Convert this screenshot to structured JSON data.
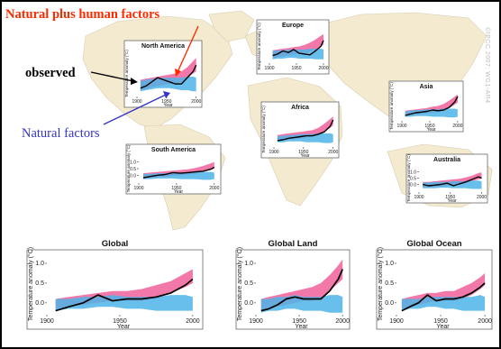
{
  "annotations": {
    "human": "Natural plus human factors",
    "observed": "observed",
    "natural": "Natural factors"
  },
  "credit": "©IPCC 2007: WG1-AR4",
  "colors": {
    "observed": "#000000",
    "natural_band": "#4fb4e8",
    "human_band": "#f0609a",
    "human_annotation": "#ff2a00",
    "natural_annotation": "#3535c8",
    "land": "#f3ead0"
  },
  "chart_data": [
    {
      "type": "line",
      "title": "North America",
      "x": [
        1906,
        1915,
        1925,
        1935,
        1945,
        1955,
        1965,
        1975,
        1985,
        1995,
        2000
      ],
      "xticks": [
        1900,
        1950,
        2000
      ],
      "xlabel": "Year",
      "ylabel": "Temperature anomaly (°C)",
      "yticks": [],
      "ylim": [
        -0.6,
        1.6
      ],
      "series": [
        {
          "name": "observed",
          "values": [
            -0.2,
            -0.1,
            0.1,
            0.3,
            0.2,
            0.1,
            0.0,
            0.0,
            0.3,
            0.6,
            0.9
          ]
        },
        {
          "name": "Natural factors",
          "low": [
            -0.35,
            -0.3,
            -0.25,
            -0.2,
            -0.2,
            -0.2,
            -0.25,
            -0.3,
            -0.3,
            -0.35,
            -0.35
          ],
          "high": [
            0.15,
            0.2,
            0.25,
            0.25,
            0.3,
            0.3,
            0.3,
            0.3,
            0.35,
            0.35,
            0.3
          ]
        },
        {
          "name": "Natural plus human factors",
          "low": [
            -0.3,
            -0.25,
            -0.15,
            -0.1,
            -0.05,
            0.0,
            0.0,
            0.1,
            0.3,
            0.5,
            0.6
          ],
          "high": [
            0.2,
            0.25,
            0.3,
            0.35,
            0.4,
            0.45,
            0.5,
            0.6,
            0.8,
            1.1,
            1.25
          ]
        }
      ]
    },
    {
      "type": "line",
      "title": "Europe",
      "x": [
        1906,
        1915,
        1925,
        1935,
        1945,
        1955,
        1965,
        1975,
        1985,
        1995,
        2000
      ],
      "xticks": [
        1900,
        1950,
        2000
      ],
      "xlabel": "",
      "ylabel": "Temperature anomaly (°C)",
      "yticks": [],
      "ylim": [
        -0.6,
        1.6
      ],
      "series": [
        {
          "name": "observed",
          "values": [
            -0.1,
            0.0,
            0.2,
            0.1,
            0.3,
            0.05,
            0.0,
            -0.05,
            0.2,
            0.5,
            0.9
          ]
        },
        {
          "name": "Natural factors",
          "low": [
            -0.35,
            -0.3,
            -0.3,
            -0.25,
            -0.25,
            -0.3,
            -0.3,
            -0.3,
            -0.35,
            -0.35,
            -0.35
          ],
          "high": [
            0.2,
            0.25,
            0.25,
            0.3,
            0.3,
            0.3,
            0.3,
            0.35,
            0.35,
            0.35,
            0.3
          ]
        },
        {
          "name": "Natural plus human factors",
          "low": [
            -0.3,
            -0.2,
            -0.15,
            -0.1,
            -0.05,
            0.0,
            0.05,
            0.15,
            0.3,
            0.5,
            0.6
          ],
          "high": [
            0.25,
            0.3,
            0.35,
            0.4,
            0.45,
            0.5,
            0.6,
            0.75,
            0.95,
            1.2,
            1.3
          ]
        }
      ]
    },
    {
      "type": "line",
      "title": "Asia",
      "x": [
        1906,
        1915,
        1925,
        1935,
        1945,
        1955,
        1965,
        1975,
        1985,
        1995,
        2000
      ],
      "xticks": [
        1900,
        1950,
        2000
      ],
      "xlabel": "Year",
      "ylabel": "Temperature anomaly (°C)",
      "yticks": [],
      "ylim": [
        -0.6,
        1.6
      ],
      "series": [
        {
          "name": "observed",
          "values": [
            -0.2,
            -0.1,
            0.0,
            0.05,
            0.1,
            0.2,
            0.15,
            0.2,
            0.4,
            0.8,
            1.2
          ]
        },
        {
          "name": "Natural factors",
          "low": [
            -0.3,
            -0.3,
            -0.25,
            -0.25,
            -0.25,
            -0.3,
            -0.3,
            -0.3,
            -0.35,
            -0.35,
            -0.3
          ],
          "high": [
            0.1,
            0.15,
            0.2,
            0.2,
            0.25,
            0.25,
            0.25,
            0.3,
            0.3,
            0.3,
            0.25
          ]
        },
        {
          "name": "Natural plus human factors",
          "low": [
            -0.25,
            -0.2,
            -0.15,
            -0.1,
            -0.05,
            0.0,
            0.05,
            0.15,
            0.35,
            0.6,
            0.75
          ],
          "high": [
            0.15,
            0.2,
            0.25,
            0.3,
            0.35,
            0.45,
            0.5,
            0.65,
            0.9,
            1.2,
            1.35
          ]
        }
      ]
    },
    {
      "type": "line",
      "title": "Africa",
      "x": [
        1906,
        1915,
        1925,
        1935,
        1945,
        1955,
        1965,
        1975,
        1985,
        1995,
        2000
      ],
      "xticks": [
        1900,
        1950,
        2000
      ],
      "xlabel": "Year",
      "ylabel": "Temperature anomaly (°C)",
      "yticks": [],
      "ylim": [
        -0.6,
        1.6
      ],
      "series": [
        {
          "name": "observed",
          "values": [
            -0.2,
            -0.15,
            -0.05,
            0.0,
            0.05,
            0.1,
            0.1,
            0.2,
            0.35,
            0.7,
            1.1
          ]
        },
        {
          "name": "Natural factors",
          "low": [
            -0.3,
            -0.3,
            -0.25,
            -0.25,
            -0.25,
            -0.3,
            -0.3,
            -0.3,
            -0.35,
            -0.35,
            -0.3
          ],
          "high": [
            0.1,
            0.1,
            0.15,
            0.15,
            0.2,
            0.2,
            0.2,
            0.25,
            0.25,
            0.25,
            0.2
          ]
        },
        {
          "name": "Natural plus human factors",
          "low": [
            -0.25,
            -0.2,
            -0.15,
            -0.1,
            -0.05,
            0.0,
            0.05,
            0.15,
            0.35,
            0.6,
            0.75
          ],
          "high": [
            0.15,
            0.2,
            0.25,
            0.3,
            0.35,
            0.4,
            0.45,
            0.6,
            0.85,
            1.15,
            1.3
          ]
        }
      ]
    },
    {
      "type": "line",
      "title": "South America",
      "x": [
        1906,
        1915,
        1925,
        1935,
        1945,
        1955,
        1965,
        1975,
        1985,
        1995,
        2000
      ],
      "xticks": [
        1900,
        1950,
        2000
      ],
      "xlabel": "Year",
      "ylabel": "Temperature anomaly (°C)",
      "yticks": [
        "0.0",
        "0.5",
        "1.0"
      ],
      "ylim": [
        -0.6,
        1.6
      ],
      "series": [
        {
          "name": "observed",
          "values": [
            -0.2,
            -0.1,
            0.0,
            0.05,
            0.2,
            0.15,
            0.2,
            0.25,
            0.3,
            0.45,
            0.6
          ]
        },
        {
          "name": "Natural factors",
          "low": [
            -0.3,
            -0.3,
            -0.25,
            -0.25,
            -0.25,
            -0.3,
            -0.3,
            -0.3,
            -0.35,
            -0.35,
            -0.3
          ],
          "high": [
            0.1,
            0.1,
            0.15,
            0.15,
            0.2,
            0.2,
            0.2,
            0.25,
            0.25,
            0.25,
            0.2
          ]
        },
        {
          "name": "Natural plus human factors",
          "low": [
            -0.25,
            -0.2,
            -0.15,
            -0.1,
            -0.05,
            0.0,
            0.05,
            0.1,
            0.25,
            0.4,
            0.5
          ],
          "high": [
            0.15,
            0.2,
            0.25,
            0.3,
            0.35,
            0.4,
            0.45,
            0.55,
            0.7,
            0.9,
            1.0
          ]
        }
      ]
    },
    {
      "type": "line",
      "title": "Australia",
      "x": [
        1906,
        1915,
        1925,
        1935,
        1945,
        1955,
        1965,
        1975,
        1985,
        1995,
        2000
      ],
      "xticks": [
        1900,
        1950,
        2000
      ],
      "xlabel": "Year",
      "ylabel": "Temperature anomaly (°C)",
      "yticks": [
        "0.0",
        "0.5",
        "1.0"
      ],
      "ylim": [
        -0.6,
        1.6
      ],
      "series": [
        {
          "name": "observed",
          "values": [
            0.0,
            -0.1,
            -0.05,
            0.0,
            0.1,
            -0.1,
            0.05,
            0.2,
            0.4,
            0.6,
            0.5
          ]
        },
        {
          "name": "Natural factors",
          "low": [
            -0.3,
            -0.3,
            -0.3,
            -0.25,
            -0.25,
            -0.3,
            -0.3,
            -0.3,
            -0.35,
            -0.35,
            -0.35
          ],
          "high": [
            0.15,
            0.15,
            0.2,
            0.2,
            0.2,
            0.25,
            0.25,
            0.25,
            0.3,
            0.3,
            0.25
          ]
        },
        {
          "name": "Natural plus human factors",
          "low": [
            -0.25,
            -0.2,
            -0.2,
            -0.15,
            -0.1,
            -0.05,
            0.0,
            0.1,
            0.25,
            0.4,
            0.45
          ],
          "high": [
            0.2,
            0.2,
            0.25,
            0.3,
            0.35,
            0.4,
            0.45,
            0.55,
            0.7,
            0.9,
            0.95
          ]
        }
      ]
    },
    {
      "type": "line",
      "title": "Global",
      "x": [
        1906,
        1915,
        1925,
        1935,
        1945,
        1955,
        1965,
        1975,
        1985,
        1995,
        2000
      ],
      "xticks": [
        1900,
        1950,
        2000
      ],
      "xlabel": "Year",
      "ylabel": "Temperature anomaly (°C)",
      "yticks": [
        "0.0",
        "0.5",
        "1.0"
      ],
      "ylim": [
        -0.3,
        1.25
      ],
      "series": [
        {
          "name": "observed",
          "values": [
            -0.2,
            -0.1,
            0.0,
            0.2,
            0.05,
            0.1,
            0.1,
            0.15,
            0.25,
            0.45,
            0.6
          ]
        },
        {
          "name": "Natural factors",
          "low": [
            -0.2,
            -0.15,
            -0.15,
            -0.1,
            -0.1,
            -0.15,
            -0.15,
            -0.2,
            -0.2,
            -0.2,
            -0.2
          ],
          "high": [
            0.1,
            0.1,
            0.15,
            0.15,
            0.2,
            0.15,
            0.15,
            0.15,
            0.2,
            0.2,
            0.15
          ]
        },
        {
          "name": "Natural plus human factors",
          "low": [
            -0.15,
            -0.1,
            -0.05,
            0.0,
            0.05,
            0.05,
            0.05,
            0.1,
            0.25,
            0.4,
            0.5
          ],
          "high": [
            0.1,
            0.15,
            0.2,
            0.25,
            0.3,
            0.3,
            0.35,
            0.45,
            0.55,
            0.75,
            0.85
          ]
        }
      ]
    },
    {
      "type": "line",
      "title": "Global Land",
      "x": [
        1906,
        1915,
        1925,
        1935,
        1945,
        1955,
        1965,
        1975,
        1985,
        1995,
        2000
      ],
      "xticks": [
        1900,
        1950,
        2000
      ],
      "xlabel": "Year",
      "ylabel": "Temperature anomaly (°C)",
      "yticks": [
        "0.0",
        "0.5",
        "1.0"
      ],
      "ylim": [
        -0.3,
        1.25
      ],
      "series": [
        {
          "name": "observed",
          "values": [
            -0.2,
            -0.15,
            -0.05,
            0.1,
            0.15,
            0.1,
            0.1,
            0.1,
            0.3,
            0.6,
            0.85
          ]
        },
        {
          "name": "Natural factors",
          "low": [
            -0.25,
            -0.2,
            -0.2,
            -0.15,
            -0.15,
            -0.2,
            -0.2,
            -0.2,
            -0.25,
            -0.25,
            -0.25
          ],
          "high": [
            0.1,
            0.1,
            0.15,
            0.15,
            0.2,
            0.15,
            0.15,
            0.15,
            0.2,
            0.2,
            0.15
          ]
        },
        {
          "name": "Natural plus human factors",
          "low": [
            -0.2,
            -0.15,
            -0.1,
            -0.05,
            0.0,
            0.05,
            0.05,
            0.1,
            0.3,
            0.5,
            0.6
          ],
          "high": [
            0.1,
            0.15,
            0.2,
            0.25,
            0.3,
            0.35,
            0.4,
            0.5,
            0.7,
            0.95,
            1.1
          ]
        }
      ]
    },
    {
      "type": "line",
      "title": "Global Ocean",
      "x": [
        1906,
        1915,
        1925,
        1935,
        1945,
        1955,
        1965,
        1975,
        1985,
        1995,
        2000
      ],
      "xticks": [
        1900,
        1950,
        2000
      ],
      "xlabel": "Year",
      "ylabel": "Temperature anomaly (°C)",
      "yticks": [
        "0.0",
        "0.5",
        "1.0"
      ],
      "ylim": [
        -0.3,
        1.25
      ],
      "series": [
        {
          "name": "observed",
          "values": [
            -0.2,
            -0.1,
            0.0,
            0.2,
            0.05,
            0.1,
            0.1,
            0.15,
            0.25,
            0.4,
            0.5
          ]
        },
        {
          "name": "Natural factors",
          "low": [
            -0.2,
            -0.15,
            -0.15,
            -0.1,
            -0.1,
            -0.15,
            -0.15,
            -0.2,
            -0.2,
            -0.2,
            -0.2
          ],
          "high": [
            0.1,
            0.1,
            0.1,
            0.15,
            0.15,
            0.15,
            0.15,
            0.15,
            0.15,
            0.2,
            0.15
          ]
        },
        {
          "name": "Natural plus human factors",
          "low": [
            -0.15,
            -0.1,
            -0.05,
            0.0,
            0.05,
            0.05,
            0.05,
            0.1,
            0.2,
            0.35,
            0.45
          ],
          "high": [
            0.1,
            0.15,
            0.2,
            0.25,
            0.25,
            0.3,
            0.3,
            0.4,
            0.5,
            0.65,
            0.75
          ]
        }
      ]
    }
  ]
}
